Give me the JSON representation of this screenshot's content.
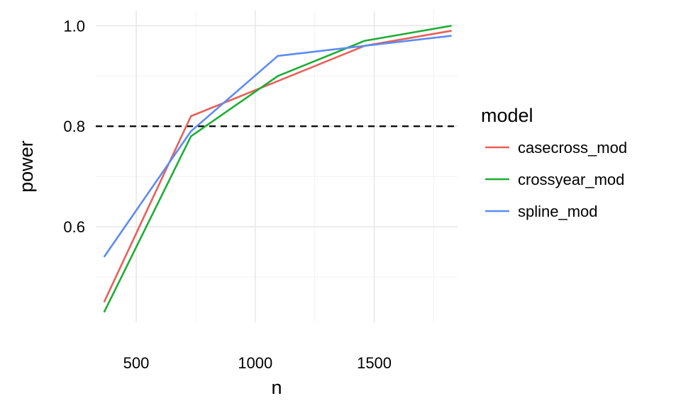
{
  "chart_data": {
    "type": "line",
    "xlabel": "n",
    "ylabel": "power",
    "xlim": [
      330,
      1850
    ],
    "ylim": [
      0.41,
      1.03
    ],
    "x_ticks": [
      500,
      1000,
      1500
    ],
    "x_tick_labels": [
      "500",
      "1000",
      "1500"
    ],
    "x_minor_ticks": [
      750,
      1250,
      1750
    ],
    "y_ticks": [
      0.6,
      0.8,
      1.0
    ],
    "y_tick_labels": [
      "0.6",
      "0.8",
      "1.0"
    ],
    "y_minor_ticks": [
      0.5,
      0.7,
      0.9
    ],
    "grid": true,
    "reference_line": {
      "y": 0.8,
      "style": "dashed",
      "color": "#000000"
    },
    "legend": {
      "title": "model",
      "position": "right"
    },
    "series": [
      {
        "name": "casecross_mod",
        "color": "#E8605A",
        "x": [
          365,
          730,
          1095,
          1460,
          1825
        ],
        "y": [
          0.45,
          0.82,
          0.89,
          0.96,
          0.99
        ]
      },
      {
        "name": "crossyear_mod",
        "color": "#1DAE34",
        "x": [
          365,
          730,
          1095,
          1460,
          1825
        ],
        "y": [
          0.43,
          0.78,
          0.9,
          0.97,
          1.0
        ]
      },
      {
        "name": "spline_mod",
        "color": "#5B8CF2",
        "x": [
          365,
          730,
          1095,
          1460,
          1825
        ],
        "y": [
          0.54,
          0.79,
          0.94,
          0.96,
          0.98
        ]
      }
    ]
  }
}
